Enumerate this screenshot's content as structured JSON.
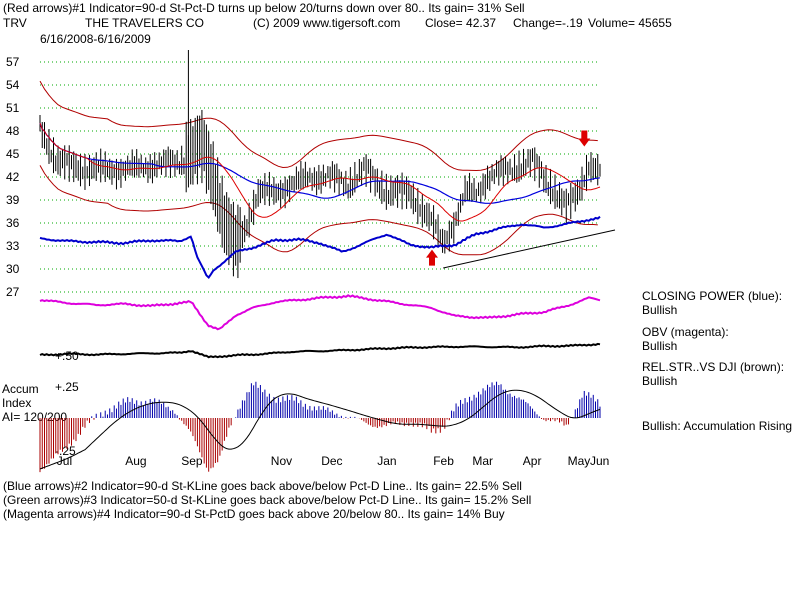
{
  "header": {
    "line1": "(Red arrows)#1 Indicator=90-d St-Pct-D turns up below 20/turns down over 80.. Its gain= 31% Sell",
    "ticker": "TRV",
    "company": "THE TRAVELERS CO",
    "copyright": "(C) 2009 www.tigersoft.com",
    "close": "Close=  42.37",
    "change": "Change=-.19",
    "volume": "Volume= 45655",
    "date_range": "6/16/2008-6/16/2009"
  },
  "side_panel": {
    "closing_power_label": "CLOSING POWER (blue):",
    "closing_power_status": "Bullish",
    "obv_label": "OBV (magenta):",
    "obv_status": "Bullish",
    "relstr_label": "REL.STR..VS DJI (brown):",
    "relstr_status": "Bullish",
    "accum_status": "Bullish: Accumulation Rising"
  },
  "accum_panel": {
    "title_line1": "Accum",
    "title_line2": "Index",
    "ai_text": "AI= 120/200",
    "upper_label": "+.25",
    "lower_label": "-.25"
  },
  "relstr_label": "+.50",
  "footer": {
    "line1": "(Blue arrows)#2 Indicator=90-d St-KLine goes back above/below Pct-D Line.. Its gain= 22.5% Sell",
    "line2": "(Green arrows)#3 Indicator=50-d St-KLine goes back above/below Pct-D Line.. Its gain= 15.2% Sell",
    "line3": "(Magenta arrows)#4 Indicator=90-d St-PctD goes back above 20/below 80.. Its gain= 14% Buy"
  },
  "colors": {
    "price_bars": "#000000",
    "bands": "#b00000",
    "moving_average_blue": "#0000dd",
    "moving_average_red": "#dd0000",
    "closing_power": "#0000cc",
    "obv": "#dd00dd",
    "relstr": "#000000",
    "accum_positive": "#0000aa",
    "accum_negative": "#aa0000",
    "grid": "#00aa00",
    "sell_arrow": "#dd0000",
    "buy_arrow": "#dd0000"
  },
  "chart_data": {
    "type": "line",
    "title": "THE TRAVELERS CO",
    "ticker": "TRV",
    "price_axis": {
      "ticks": [
        27,
        30,
        33,
        36,
        39,
        42,
        45,
        48,
        51,
        54,
        57
      ],
      "ylim": [
        25.5,
        58.5
      ]
    },
    "months": [
      "Jul",
      "Aug",
      "Sep",
      "Nov",
      "Dec",
      "Jan",
      "Feb",
      "Mar",
      "Apr",
      "May",
      "Jun"
    ],
    "month_positions": [
      0.03,
      0.17,
      0.27,
      0.43,
      0.52,
      0.62,
      0.72,
      0.79,
      0.88,
      0.96,
      1.0
    ],
    "closing_price": {
      "x": [
        0,
        0.03,
        0.08,
        0.15,
        0.2,
        0.25,
        0.27,
        0.29,
        0.31,
        0.33,
        0.35,
        0.37,
        0.39,
        0.42,
        0.45,
        0.48,
        0.52,
        0.55,
        0.58,
        0.62,
        0.66,
        0.7,
        0.72,
        0.74,
        0.76,
        0.78,
        0.8,
        0.84,
        0.88,
        0.91,
        0.94,
        0.96,
        0.98,
        1.0
      ],
      "values": [
        48.5,
        44,
        43,
        43,
        43.5,
        44,
        45,
        46,
        42,
        36,
        33,
        36,
        40,
        40,
        41,
        42,
        42,
        41,
        43,
        40,
        40,
        36,
        33.5,
        36,
        40,
        40,
        42,
        43,
        44,
        41,
        38,
        40,
        43.5,
        42.4
      ]
    },
    "series": [
      {
        "name": "CLOSING POWER (blue)",
        "x": [
          0,
          0.05,
          0.1,
          0.15,
          0.2,
          0.25,
          0.27,
          0.28,
          0.3,
          0.31,
          0.33,
          0.35,
          0.38,
          0.42,
          0.46,
          0.5,
          0.54,
          0.58,
          0.62,
          0.66,
          0.7,
          0.74,
          0.78,
          0.82,
          0.86,
          0.9,
          0.94,
          0.98,
          1.0
        ],
        "values": [
          5,
          2,
          1,
          0,
          3,
          2,
          8,
          -15,
          -40,
          -30,
          -20,
          -10,
          -5,
          3,
          4,
          0,
          -10,
          0,
          10,
          -2,
          -5,
          -2,
          10,
          16,
          21,
          17,
          21,
          26,
          28
        ]
      },
      {
        "name": "OBV (magenta)",
        "x": [
          0,
          0.05,
          0.1,
          0.15,
          0.2,
          0.25,
          0.27,
          0.3,
          0.32,
          0.35,
          0.38,
          0.42,
          0.46,
          0.5,
          0.55,
          0.6,
          0.65,
          0.7,
          0.74,
          0.8,
          0.86,
          0.9,
          0.94,
          0.98,
          1.0
        ],
        "values": [
          0,
          -3,
          -5,
          -4,
          -6,
          -3,
          -2,
          -25,
          -30,
          -15,
          -8,
          -2,
          0,
          2,
          4,
          0,
          -4,
          -8,
          -16,
          -18,
          -14,
          -12,
          -6,
          2,
          0
        ]
      },
      {
        "name": "REL.STR..VS DJI (brown)",
        "x": [
          0,
          0.05,
          0.1,
          0.15,
          0.2,
          0.25,
          0.27,
          0.3,
          0.33,
          0.36,
          0.4,
          0.45,
          0.5,
          0.55,
          0.6,
          0.65,
          0.7,
          0.75,
          0.8,
          0.85,
          0.9,
          0.95,
          1.0
        ],
        "values": [
          0,
          0.05,
          0.02,
          0.05,
          0.08,
          0.1,
          0.2,
          -0.1,
          -0.05,
          0,
          0.05,
          0.15,
          0.18,
          0.22,
          0.28,
          0.33,
          0.36,
          0.38,
          0.37,
          0.35,
          0.4,
          0.42,
          0.5
        ]
      }
    ],
    "accumulation_index": {
      "x": [
        0,
        0.04,
        0.08,
        0.12,
        0.16,
        0.2,
        0.24,
        0.27,
        0.3,
        0.32,
        0.34,
        0.36,
        0.38,
        0.4,
        0.42,
        0.46,
        0.5,
        0.54,
        0.58,
        0.62,
        0.66,
        0.7,
        0.72,
        0.74,
        0.78,
        0.82,
        0.86,
        0.9,
        0.94,
        0.97,
        1.0
      ],
      "values": [
        -0.3,
        -0.2,
        -0.05,
        0.05,
        0.1,
        0.1,
        0.05,
        -0.1,
        -0.3,
        -0.25,
        -0.05,
        0.1,
        0.2,
        0.15,
        0.12,
        0.1,
        0.05,
        0.02,
        -0.03,
        -0.05,
        -0.02,
        -0.08,
        -0.05,
        0.05,
        0.15,
        0.2,
        0.1,
        0.0,
        -0.05,
        0.15,
        0.08
      ],
      "ylim": [
        -0.3,
        0.3
      ]
    },
    "annotations": [
      {
        "type": "sell_arrow",
        "x": 0.972,
        "price": 46.5
      },
      {
        "type": "buy_arrow",
        "x": 0.7,
        "price": 32
      }
    ]
  }
}
